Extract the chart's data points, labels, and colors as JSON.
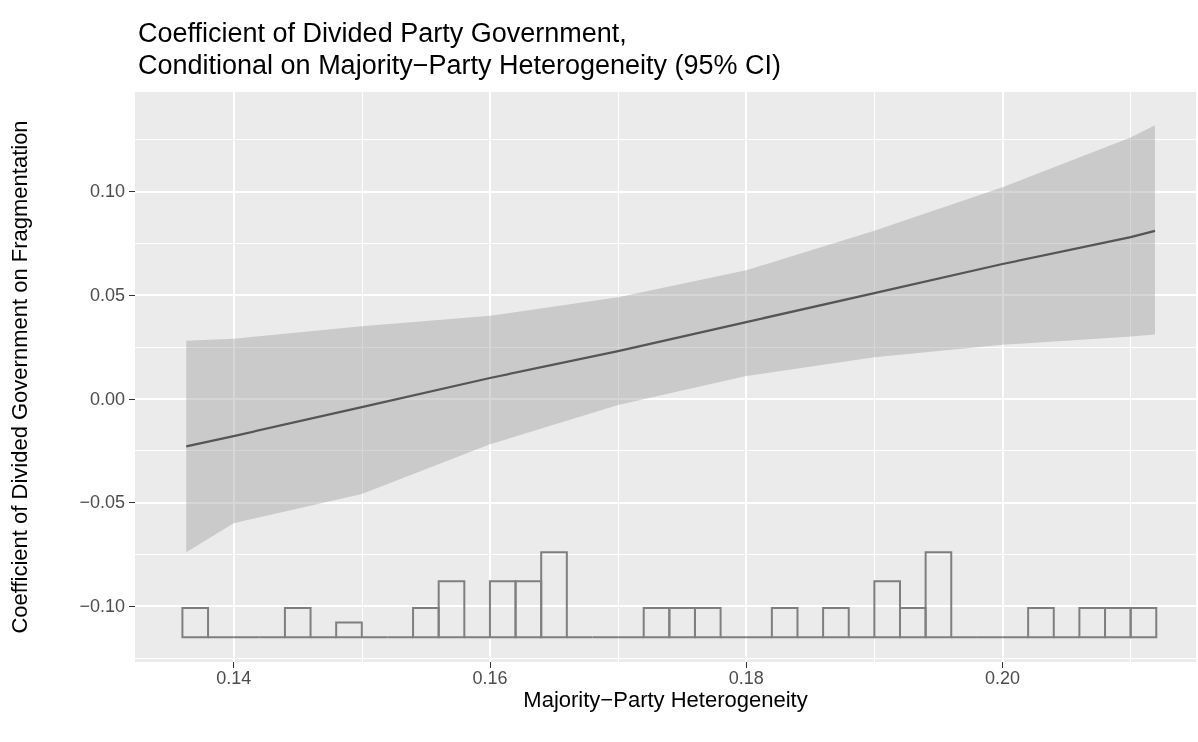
{
  "chart_data": {
    "type": "line",
    "title": "Coefficient of Divided Party Government,\nConditional on Majority−Party Heterogeneity (95% CI)",
    "xlabel": "Majority−Party Heterogeneity",
    "ylabel": "Coefficient of Divided Government on Fragmentation",
    "xlim": [
      0.1323,
      0.2151
    ],
    "xticks": [
      0.14,
      0.16,
      0.18,
      {
        "value": 0.2,
        "label": "0.20"
      }
    ],
    "ylim": [
      -0.127,
      0.148
    ],
    "yticks": [
      {
        "value": -0.1,
        "label": "−0.10"
      },
      {
        "value": -0.05,
        "label": "−0.05"
      },
      {
        "value": 0,
        "label": "0.00"
      },
      0.05,
      {
        "value": 0.1,
        "label": "0.10"
      }
    ],
    "grid": true,
    "marker": "none",
    "line_style": "solid",
    "series": [
      {
        "color": "#555555",
        "x": [
          0.1363,
          0.14,
          0.15,
          0.16,
          0.17,
          0.18,
          0.19,
          0.2,
          0.21,
          0.2119
        ],
        "values": [
          -0.023,
          -0.018,
          -0.004,
          0.01,
          0.023,
          0.037,
          0.051,
          0.065,
          0.078,
          0.081
        ],
        "lower": [
          -0.074,
          -0.06,
          -0.046,
          -0.022,
          -0.003,
          0.011,
          0.02,
          0.026,
          0.03,
          0.031
        ],
        "upper": [
          0.028,
          0.029,
          0.035,
          0.04,
          0.049,
          0.062,
          0.081,
          0.102,
          0.126,
          0.132
        ]
      },
      {
        "type": "histogram",
        "color": "#7f7f7f",
        "bins": [
          0.136,
          0.138,
          0.14,
          0.142,
          0.144,
          0.146,
          0.148,
          0.15,
          0.152,
          0.154,
          0.156,
          0.158,
          0.16,
          0.162,
          0.164,
          0.166,
          0.168,
          0.17,
          0.172,
          0.174,
          0.176,
          0.178,
          0.18,
          0.182,
          0.184,
          0.186,
          0.188,
          0.19,
          0.192,
          0.194,
          0.196,
          0.198,
          0.2,
          0.202,
          0.204,
          0.206,
          0.208,
          0.21,
          0.212
        ],
        "base": [
          -0.115,
          -0.115,
          -0.115,
          -0.115,
          -0.115,
          -0.115,
          -0.115,
          -0.115,
          -0.115,
          -0.115,
          -0.115,
          -0.115,
          -0.115,
          -0.115,
          -0.115,
          -0.115,
          -0.115,
          -0.115,
          -0.115,
          -0.115,
          -0.115,
          -0.115,
          -0.115,
          -0.115,
          -0.115,
          -0.115,
          -0.115,
          -0.115,
          -0.115,
          -0.115,
          -0.115,
          -0.115,
          -0.115,
          -0.115,
          -0.115,
          -0.115,
          -0.115,
          -0.115
        ],
        "values": [
          0.014,
          0,
          0,
          0,
          0.014,
          0,
          0.007,
          0,
          0,
          0.014,
          0.027,
          0,
          0.027,
          0.027,
          0.041,
          0,
          0,
          0,
          0.014,
          0.014,
          0.014,
          0,
          0,
          0.014,
          0,
          0.014,
          0,
          0.027,
          0.014,
          0.041,
          0,
          0,
          0,
          0.014,
          0,
          0.014,
          0.014,
          0.014
        ]
      }
    ]
  }
}
